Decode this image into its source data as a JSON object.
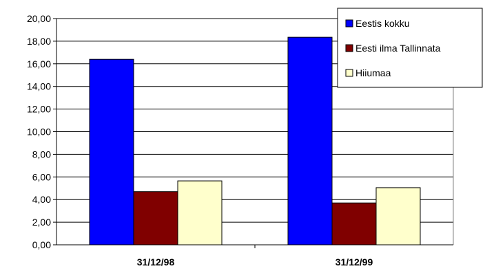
{
  "chart_data": {
    "type": "bar",
    "title": "",
    "xlabel": "",
    "ylabel": "",
    "categories": [
      "31/12/98",
      "31/12/99"
    ],
    "series": [
      {
        "name": "Eestis kokku",
        "values": [
          16.4,
          18.35
        ],
        "color": "#0000FF"
      },
      {
        "name": "Eesti ilma Tallinnata",
        "values": [
          4.7,
          3.7
        ],
        "color": "#800000"
      },
      {
        "name": "Hiiumaa",
        "values": [
          5.65,
          5.05
        ],
        "color": "#FFFFCC"
      }
    ],
    "ylim": [
      0,
      20
    ],
    "ystep": 2,
    "yticks": [
      "0,00",
      "2,00",
      "4,00",
      "6,00",
      "8,00",
      "10,00",
      "12,00",
      "14,00",
      "16,00",
      "18,00",
      "20,00"
    ],
    "grid": true,
    "legend_position": "top-right"
  }
}
